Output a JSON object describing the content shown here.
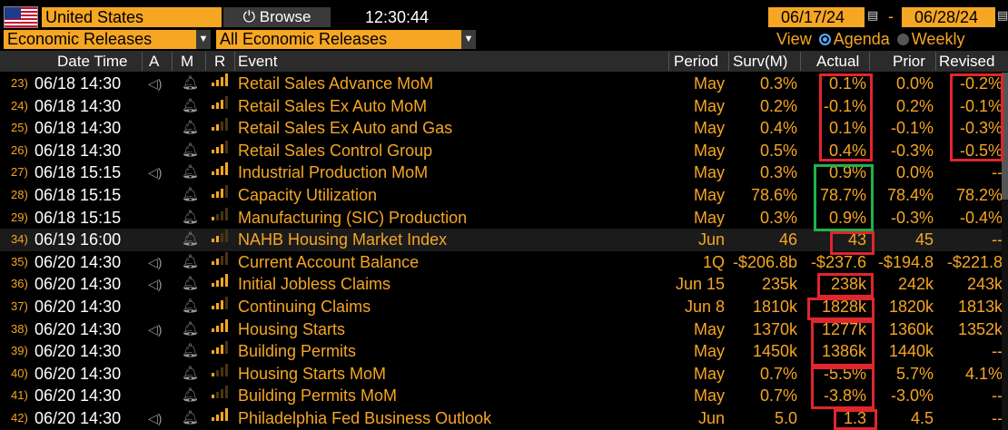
{
  "toolbar": {
    "country": "United States",
    "browse_label": "Browse",
    "clock": "12:30:44",
    "date_from": "06/17/24",
    "date_to": "06/28/24",
    "date_sep": "-"
  },
  "filters": {
    "category": "Economic Releases",
    "subcategory": "All Economic Releases",
    "view_label": "View",
    "view_agenda": "Agenda",
    "view_weekly": "Weekly"
  },
  "columns": {
    "datetime": "Date Time",
    "a": "A",
    "m": "M",
    "r": "R",
    "event": "Event",
    "period": "Period",
    "surv": "Surv(M)",
    "actual": "Actual",
    "prior": "Prior",
    "revised": "Revised"
  },
  "rows": [
    {
      "num": "23)",
      "dt": "06/18 14:30",
      "speaker": true,
      "rel": 4,
      "event": "Retail Sales Advance MoM",
      "period": "May",
      "surv": "0.3%",
      "actual": "0.1%",
      "prior": "0.0%",
      "revised": "-0.2%"
    },
    {
      "num": "24)",
      "dt": "06/18 14:30",
      "speaker": false,
      "rel": 3,
      "event": "Retail Sales Ex Auto MoM",
      "period": "May",
      "surv": "0.2%",
      "actual": "-0.1%",
      "prior": "0.2%",
      "revised": "-0.1%"
    },
    {
      "num": "25)",
      "dt": "06/18 14:30",
      "speaker": false,
      "rel": 2,
      "event": "Retail Sales Ex Auto and Gas",
      "period": "May",
      "surv": "0.4%",
      "actual": "0.1%",
      "prior": "-0.1%",
      "revised": "-0.3%"
    },
    {
      "num": "26)",
      "dt": "06/18 14:30",
      "speaker": false,
      "rel": 3,
      "event": "Retail Sales Control Group",
      "period": "May",
      "surv": "0.5%",
      "actual": "0.4%",
      "prior": "-0.3%",
      "revised": "-0.5%"
    },
    {
      "num": "27)",
      "dt": "06/18 15:15",
      "speaker": true,
      "rel": 4,
      "event": "Industrial Production MoM",
      "period": "May",
      "surv": "0.3%",
      "actual": "0.9%",
      "prior": "0.0%",
      "revised": "--"
    },
    {
      "num": "28)",
      "dt": "06/18 15:15",
      "speaker": false,
      "rel": 3,
      "event": "Capacity Utilization",
      "period": "May",
      "surv": "78.6%",
      "actual": "78.7%",
      "prior": "78.4%",
      "revised": "78.2%"
    },
    {
      "num": "29)",
      "dt": "06/18 15:15",
      "speaker": false,
      "rel": 1,
      "event": "Manufacturing (SIC) Production",
      "period": "May",
      "surv": "0.3%",
      "actual": "0.9%",
      "prior": "-0.3%",
      "revised": "-0.4%"
    },
    {
      "num": "34)",
      "dt": "06/19 16:00",
      "speaker": false,
      "rel": 2,
      "event": "NAHB Housing Market Index",
      "period": "Jun",
      "surv": "46",
      "actual": "43",
      "prior": "45",
      "revised": "--",
      "highlight": true
    },
    {
      "num": "35)",
      "dt": "06/20 14:30",
      "speaker": true,
      "rel": 2,
      "event": "Current Account Balance",
      "period": "1Q",
      "surv": "-$206.8b",
      "actual": "-$237.6",
      "prior": "-$194.8",
      "revised": "-$221.8"
    },
    {
      "num": "36)",
      "dt": "06/20 14:30",
      "speaker": true,
      "rel": 4,
      "event": "Initial Jobless Claims",
      "period": "Jun 15",
      "surv": "235k",
      "actual": "238k",
      "prior": "242k",
      "revised": "243k"
    },
    {
      "num": "37)",
      "dt": "06/20 14:30",
      "speaker": false,
      "rel": 3,
      "event": "Continuing Claims",
      "period": "Jun 8",
      "surv": "1810k",
      "actual": "1828k",
      "prior": "1820k",
      "revised": "1813k"
    },
    {
      "num": "38)",
      "dt": "06/20 14:30",
      "speaker": true,
      "rel": 4,
      "event": "Housing Starts",
      "period": "May",
      "surv": "1370k",
      "actual": "1277k",
      "prior": "1360k",
      "revised": "1352k"
    },
    {
      "num": "39)",
      "dt": "06/20 14:30",
      "speaker": false,
      "rel": 3,
      "event": "Building Permits",
      "period": "May",
      "surv": "1450k",
      "actual": "1386k",
      "prior": "1440k",
      "revised": "--"
    },
    {
      "num": "40)",
      "dt": "06/20 14:30",
      "speaker": false,
      "rel": 1,
      "event": "Housing Starts MoM",
      "period": "May",
      "surv": "0.7%",
      "actual": "-5.5%",
      "prior": "5.7%",
      "revised": "4.1%"
    },
    {
      "num": "41)",
      "dt": "06/20 14:30",
      "speaker": false,
      "rel": 1,
      "event": "Building Permits MoM",
      "period": "May",
      "surv": "0.7%",
      "actual": "-3.8%",
      "prior": "-3.0%",
      "revised": "--"
    },
    {
      "num": "42)",
      "dt": "06/20 14:30",
      "speaker": true,
      "rel": 4,
      "event": "Philadelphia Fed Business Outlook",
      "period": "Jun",
      "surv": "5.0",
      "actual": "1.3",
      "prior": "4.5",
      "revised": "--"
    }
  ],
  "colors": {
    "accent": "#f5a623",
    "highlight_box": "#e0262c",
    "green_box": "#22b14c"
  },
  "icons": {
    "speaker": "speaker-icon",
    "bell": "bell-icon",
    "relevance": "relevance-bars-icon"
  }
}
